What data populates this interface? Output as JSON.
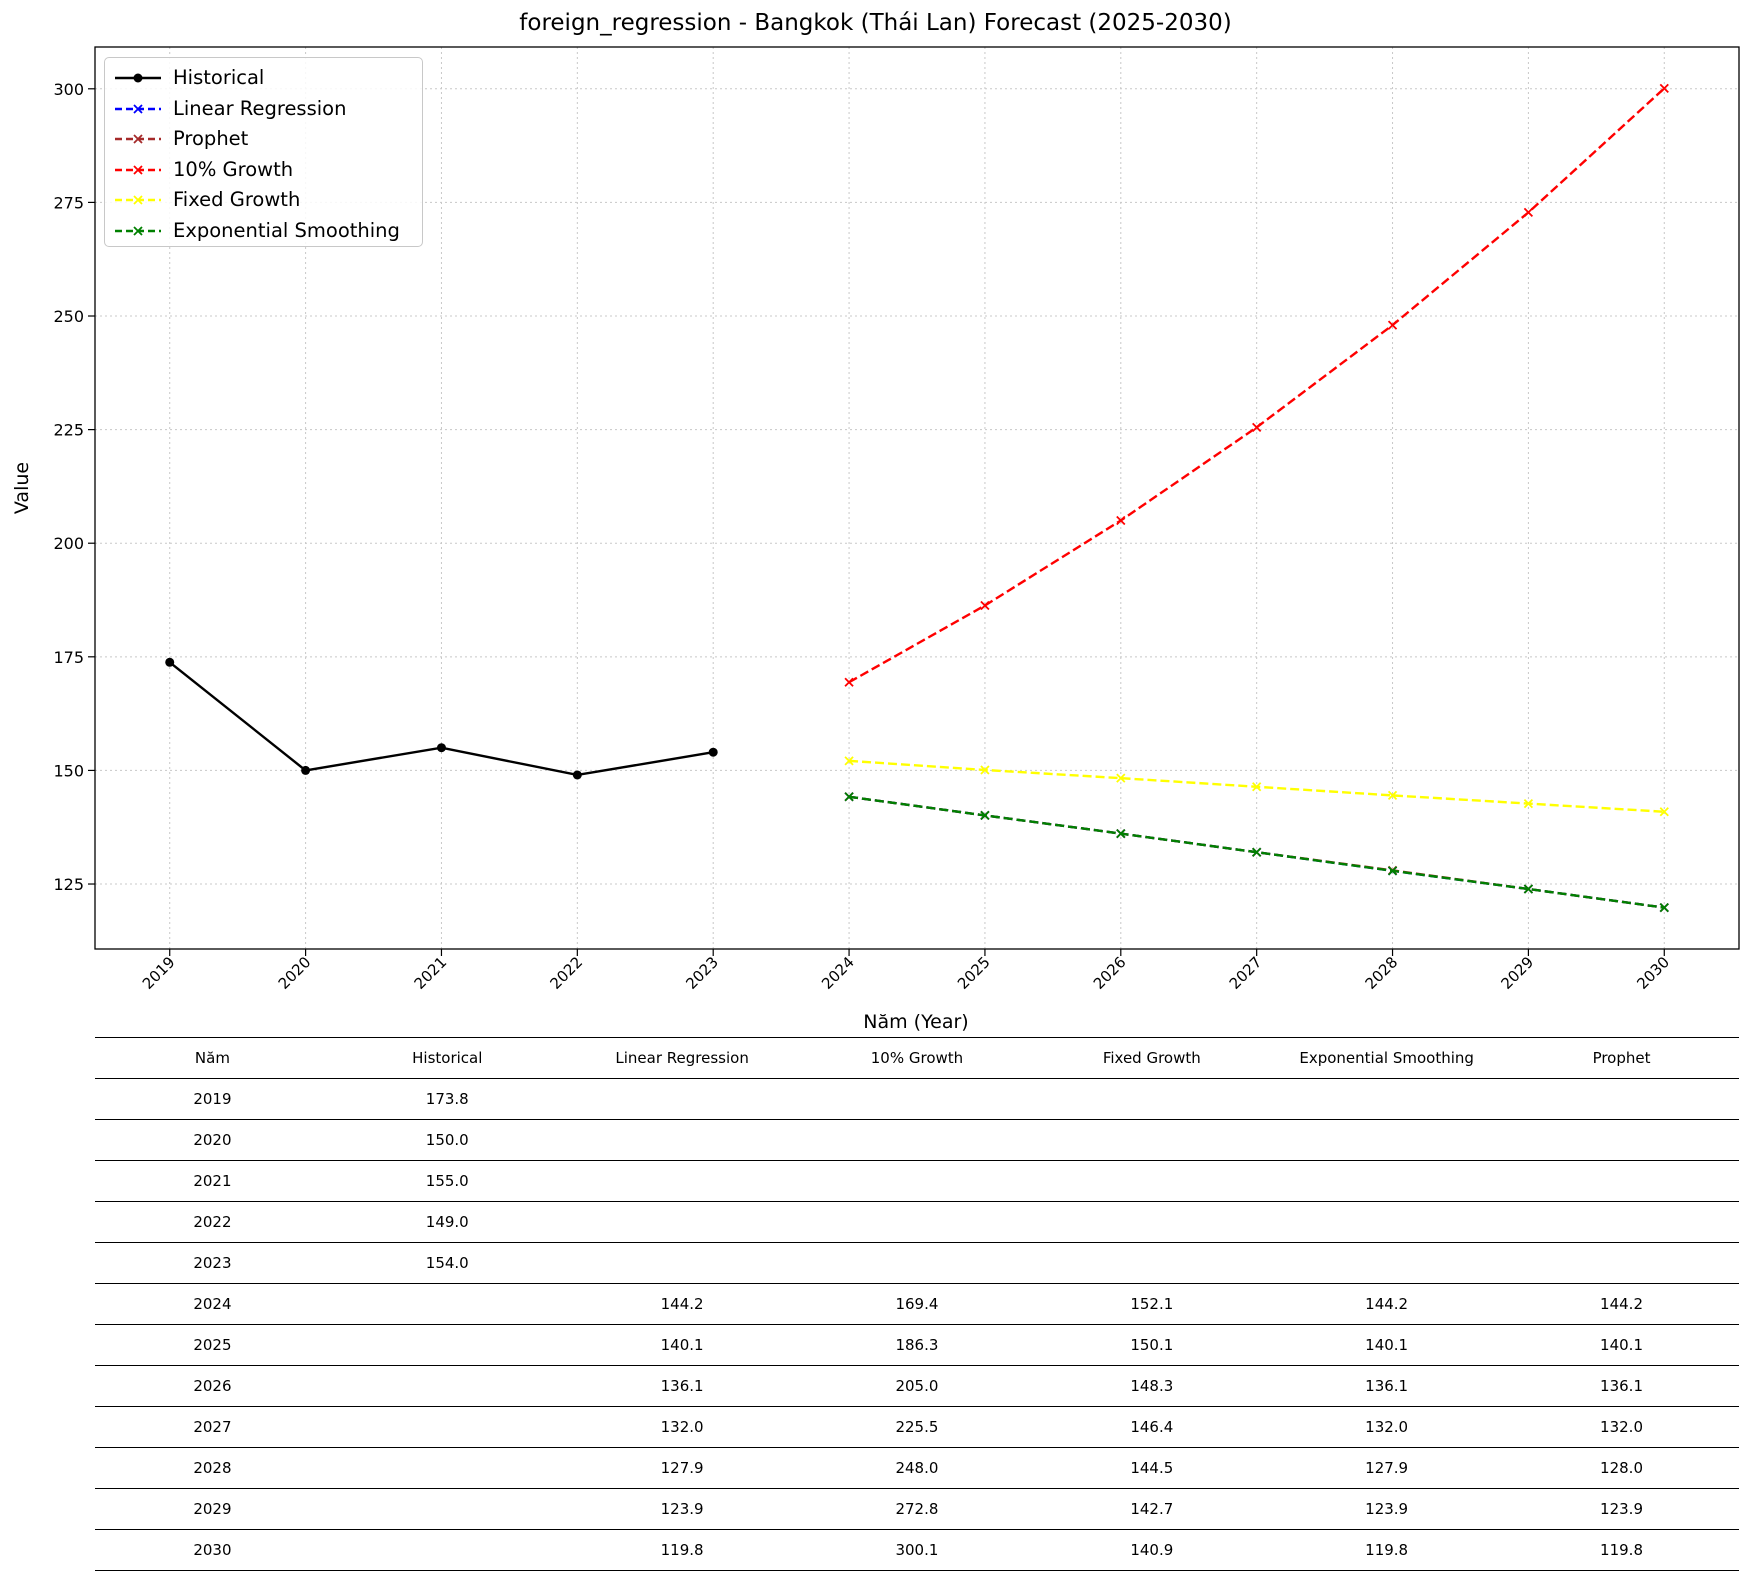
{
  "chart_data": {
    "type": "line",
    "title": "foreign_regression - Bangkok (Thái Lan) Forecast (2025-2030)",
    "xlabel": "Năm (Year)",
    "ylabel": "Value",
    "x": [
      2019,
      2020,
      2021,
      2022,
      2023,
      2024,
      2025,
      2026,
      2027,
      2028,
      2029,
      2030
    ],
    "xlim": [
      2018.45,
      2030.55
    ],
    "ylim": [
      110.7,
      309.2
    ],
    "yticks": [
      125,
      150,
      175,
      200,
      225,
      250,
      275,
      300
    ],
    "grid": true,
    "legend_position": "upper-left",
    "series": [
      {
        "name": "Historical",
        "color": "#000000",
        "style": "solid",
        "marker": "circle",
        "x": [
          2019,
          2020,
          2021,
          2022,
          2023
        ],
        "values": [
          173.8,
          150.0,
          155.0,
          149.0,
          154.0
        ]
      },
      {
        "name": "Linear Regression",
        "color": "#0000ff",
        "style": "dashed",
        "marker": "x",
        "x": [
          2024,
          2025,
          2026,
          2027,
          2028,
          2029,
          2030
        ],
        "values": [
          144.2,
          140.1,
          136.1,
          132.0,
          127.9,
          123.9,
          119.8
        ]
      },
      {
        "name": "Prophet",
        "color": "#a52a2a",
        "style": "dashed",
        "marker": "x",
        "x": [
          2024,
          2025,
          2026,
          2027,
          2028,
          2029,
          2030
        ],
        "values": [
          144.2,
          140.1,
          136.1,
          132.0,
          128.0,
          123.9,
          119.8
        ]
      },
      {
        "name": "10% Growth",
        "color": "#ff0000",
        "style": "dashed",
        "marker": "x",
        "x": [
          2024,
          2025,
          2026,
          2027,
          2028,
          2029,
          2030
        ],
        "values": [
          169.4,
          186.3,
          205.0,
          225.5,
          248.0,
          272.8,
          300.1
        ]
      },
      {
        "name": "Fixed Growth",
        "color": "#ffff00",
        "style": "dashed",
        "marker": "x",
        "x": [
          2024,
          2025,
          2026,
          2027,
          2028,
          2029,
          2030
        ],
        "values": [
          152.1,
          150.1,
          148.3,
          146.4,
          144.5,
          142.7,
          140.9
        ]
      },
      {
        "name": "Exponential Smoothing",
        "color": "#008000",
        "style": "dashed",
        "marker": "x",
        "x": [
          2024,
          2025,
          2026,
          2027,
          2028,
          2029,
          2030
        ],
        "values": [
          144.2,
          140.1,
          136.1,
          132.0,
          127.9,
          123.9,
          119.8
        ]
      }
    ]
  },
  "table": {
    "headers": [
      "Năm",
      "Historical",
      "Linear Regression",
      "10% Growth",
      "Fixed Growth",
      "Exponential Smoothing",
      "Prophet"
    ],
    "rows": [
      [
        "2019",
        "173.8",
        "",
        "",
        "",
        "",
        ""
      ],
      [
        "2020",
        "150.0",
        "",
        "",
        "",
        "",
        ""
      ],
      [
        "2021",
        "155.0",
        "",
        "",
        "",
        "",
        ""
      ],
      [
        "2022",
        "149.0",
        "",
        "",
        "",
        "",
        ""
      ],
      [
        "2023",
        "154.0",
        "",
        "",
        "",
        "",
        ""
      ],
      [
        "2024",
        "",
        "144.2",
        "169.4",
        "152.1",
        "144.2",
        "144.2"
      ],
      [
        "2025",
        "",
        "140.1",
        "186.3",
        "150.1",
        "140.1",
        "140.1"
      ],
      [
        "2026",
        "",
        "136.1",
        "205.0",
        "148.3",
        "136.1",
        "136.1"
      ],
      [
        "2027",
        "",
        "132.0",
        "225.5",
        "146.4",
        "132.0",
        "132.0"
      ],
      [
        "2028",
        "",
        "127.9",
        "248.0",
        "144.5",
        "127.9",
        "128.0"
      ],
      [
        "2029",
        "",
        "123.9",
        "272.8",
        "142.7",
        "123.9",
        "123.9"
      ],
      [
        "2030",
        "",
        "119.8",
        "300.1",
        "140.9",
        "119.8",
        "119.8"
      ]
    ]
  }
}
